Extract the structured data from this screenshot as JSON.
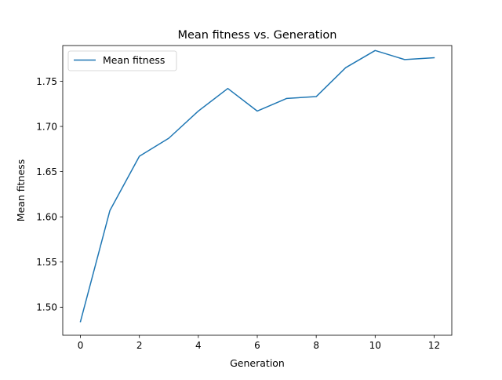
{
  "chart_data": {
    "type": "line",
    "title": "Mean fitness vs. Generation",
    "xlabel": "Generation",
    "ylabel": "Mean fitness",
    "xlim": [
      -0.6,
      12.6
    ],
    "ylim": [
      1.469,
      1.7895
    ],
    "xticks": [
      0,
      2,
      4,
      6,
      8,
      10,
      12
    ],
    "xtick_labels": [
      "0",
      "2",
      "4",
      "6",
      "8",
      "10",
      "12"
    ],
    "yticks": [
      1.5,
      1.55,
      1.6,
      1.65,
      1.7,
      1.75
    ],
    "ytick_labels": [
      "1.50",
      "1.55",
      "1.60",
      "1.65",
      "1.70",
      "1.75"
    ],
    "grid": false,
    "legend": {
      "position": "top-left"
    },
    "series": [
      {
        "name": "Mean fitness",
        "color": "#1f77b4",
        "x": [
          0,
          1,
          2,
          3,
          4,
          5,
          6,
          7,
          8,
          9,
          10,
          11,
          12
        ],
        "y": [
          1.484,
          1.607,
          1.667,
          1.687,
          1.717,
          1.742,
          1.717,
          1.731,
          1.733,
          1.765,
          1.784,
          1.774,
          1.776
        ]
      }
    ]
  }
}
